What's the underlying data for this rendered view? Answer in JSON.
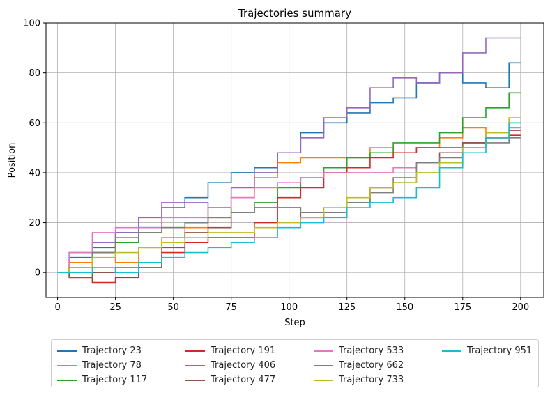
{
  "chart_data": {
    "type": "line",
    "title": "Trajectories summary",
    "xlabel": "Step",
    "ylabel": "Position",
    "xlim": [
      -5,
      210
    ],
    "ylim": [
      -10,
      100
    ],
    "xticks": [
      0,
      25,
      50,
      75,
      100,
      125,
      150,
      175,
      200
    ],
    "yticks": [
      0,
      20,
      40,
      60,
      80,
      100
    ],
    "grid": true,
    "legend_placement": "bottom-center, 4 columns",
    "x": [
      0,
      10,
      20,
      30,
      40,
      50,
      60,
      70,
      80,
      90,
      100,
      110,
      120,
      130,
      140,
      150,
      160,
      170,
      180,
      190,
      200
    ],
    "series": [
      {
        "name": "Trajectory 23",
        "color": "#1f77b4",
        "values": [
          0,
          6,
          10,
          16,
          18,
          26,
          30,
          36,
          40,
          42,
          48,
          56,
          60,
          64,
          68,
          70,
          76,
          80,
          76,
          74,
          84
        ]
      },
      {
        "name": "Trajectory 78",
        "color": "#ff7f0e",
        "values": [
          0,
          4,
          8,
          4,
          10,
          14,
          18,
          22,
          30,
          38,
          44,
          46,
          46,
          46,
          50,
          48,
          50,
          54,
          58,
          54,
          60
        ]
      },
      {
        "name": "Trajectory 117",
        "color": "#2ca02c",
        "values": [
          0,
          2,
          8,
          12,
          16,
          18,
          20,
          26,
          24,
          28,
          34,
          38,
          42,
          46,
          48,
          52,
          52,
          56,
          62,
          66,
          72
        ]
      },
      {
        "name": "Trajectory 191",
        "color": "#d62728",
        "values": [
          0,
          -2,
          -4,
          -2,
          2,
          8,
          12,
          14,
          14,
          20,
          30,
          34,
          40,
          42,
          46,
          48,
          50,
          50,
          52,
          54,
          55
        ]
      },
      {
        "name": "Trajectory 406",
        "color": "#9467bd",
        "values": [
          0,
          8,
          12,
          16,
          22,
          28,
          28,
          26,
          34,
          40,
          48,
          54,
          62,
          66,
          74,
          78,
          76,
          80,
          88,
          94,
          94
        ]
      },
      {
        "name": "Trajectory 477",
        "color": "#8c564b",
        "values": [
          0,
          -2,
          0,
          2,
          2,
          10,
          16,
          18,
          24,
          26,
          26,
          22,
          24,
          28,
          34,
          36,
          44,
          48,
          52,
          54,
          57
        ]
      },
      {
        "name": "Trajectory 533",
        "color": "#e377c2",
        "values": [
          0,
          8,
          16,
          18,
          18,
          22,
          22,
          26,
          30,
          34,
          36,
          38,
          40,
          40,
          40,
          42,
          44,
          44,
          50,
          56,
          58
        ]
      },
      {
        "name": "Trajectory 662",
        "color": "#7f7f7f",
        "values": [
          0,
          2,
          8,
          14,
          16,
          18,
          20,
          22,
          24,
          26,
          26,
          24,
          24,
          28,
          32,
          38,
          44,
          46,
          50,
          52,
          54
        ]
      },
      {
        "name": "Trajectory 733",
        "color": "#bcbd22",
        "values": [
          0,
          2,
          6,
          8,
          10,
          12,
          14,
          16,
          16,
          18,
          20,
          22,
          26,
          30,
          34,
          36,
          40,
          44,
          50,
          56,
          62
        ]
      },
      {
        "name": "Trajectory 951",
        "color": "#17becf",
        "values": [
          0,
          0,
          2,
          0,
          4,
          6,
          8,
          10,
          12,
          14,
          18,
          20,
          22,
          26,
          28,
          30,
          34,
          42,
          48,
          54,
          60
        ]
      }
    ]
  }
}
